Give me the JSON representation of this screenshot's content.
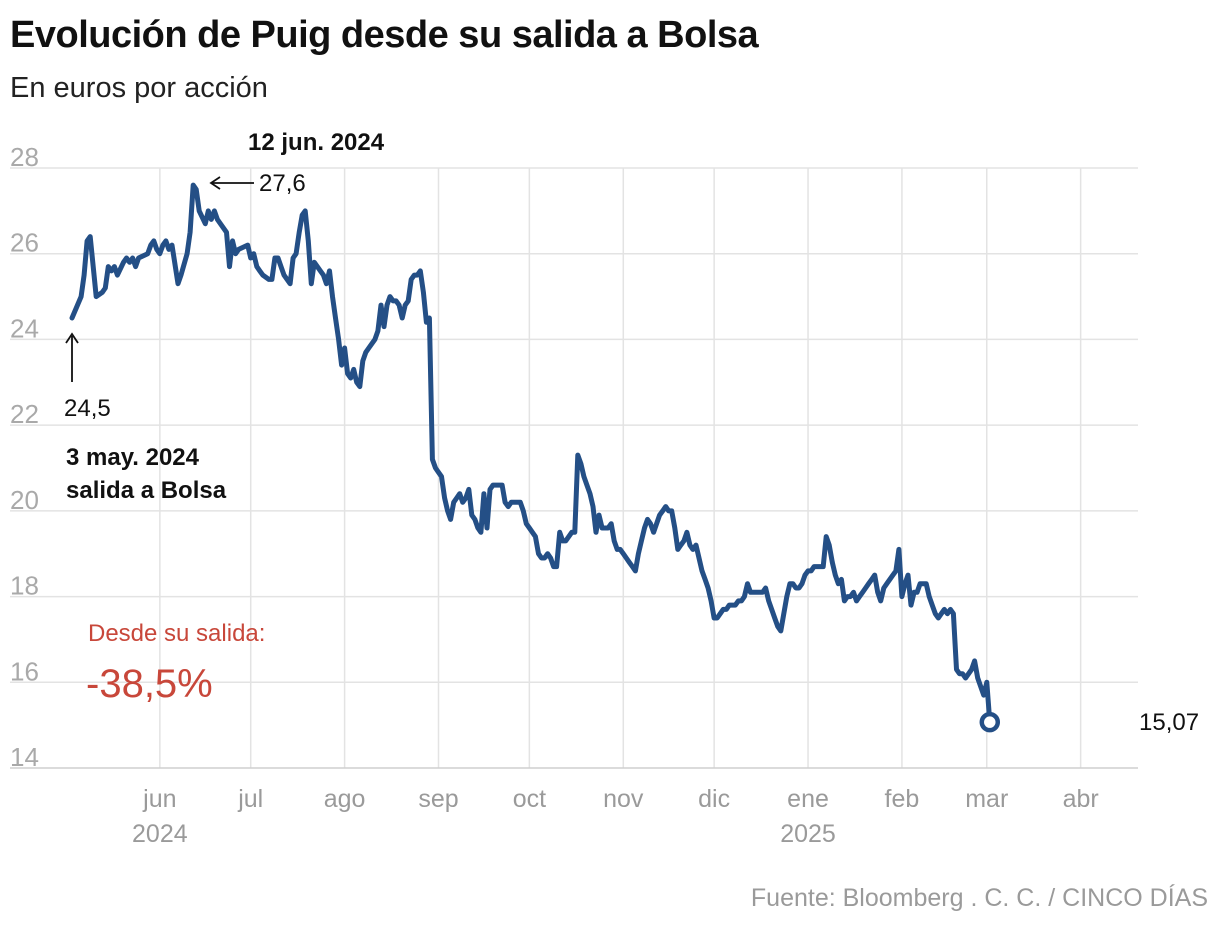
{
  "chart_data": {
    "type": "line",
    "title": "Evolución de Puig desde su salida a Bolsa",
    "subtitle": "En euros por acción",
    "source": "Fuente: Bloomberg . C. C. / CINCO DÍAS",
    "ylim": [
      14,
      28
    ],
    "yticks": [
      14,
      16,
      18,
      20,
      22,
      24,
      26,
      28
    ],
    "x_range": [
      0,
      345
    ],
    "x_ticks": [
      {
        "label": "jun",
        "sublabel": "2024",
        "day": 29
      },
      {
        "label": "jul",
        "sublabel": "",
        "day": 59
      },
      {
        "label": "ago",
        "sublabel": "",
        "day": 90
      },
      {
        "label": "sep",
        "sublabel": "",
        "day": 121
      },
      {
        "label": "oct",
        "sublabel": "",
        "day": 151
      },
      {
        "label": "nov",
        "sublabel": "",
        "day": 182
      },
      {
        "label": "dic",
        "sublabel": "",
        "day": 212
      },
      {
        "label": "ene",
        "sublabel": "2025",
        "day": 243
      },
      {
        "label": "feb",
        "sublabel": "",
        "day": 274
      },
      {
        "label": "mar",
        "sublabel": "",
        "day": 302
      },
      {
        "label": "abr",
        "sublabel": "",
        "day": 333
      }
    ],
    "series": [
      {
        "name": "Puig",
        "color": "#244f86",
        "points": [
          [
            0,
            24.5
          ],
          [
            3,
            25.0
          ],
          [
            4,
            25.5
          ],
          [
            5,
            26.3
          ],
          [
            6,
            26.4
          ],
          [
            8,
            25.0
          ],
          [
            10,
            25.1
          ],
          [
            11,
            25.2
          ],
          [
            12,
            25.7
          ],
          [
            13,
            25.6
          ],
          [
            14,
            25.7
          ],
          [
            15,
            25.5
          ],
          [
            17,
            25.8
          ],
          [
            18,
            25.9
          ],
          [
            19,
            25.8
          ],
          [
            20,
            25.9
          ],
          [
            21,
            25.7
          ],
          [
            22,
            25.9
          ],
          [
            25,
            26.0
          ],
          [
            26,
            26.2
          ],
          [
            27,
            26.3
          ],
          [
            28,
            26.1
          ],
          [
            29,
            26.0
          ],
          [
            30,
            26.2
          ],
          [
            31,
            26.3
          ],
          [
            32,
            26.1
          ],
          [
            33,
            26.2
          ],
          [
            35,
            25.3
          ],
          [
            36,
            25.5
          ],
          [
            38,
            26.0
          ],
          [
            39,
            26.5
          ],
          [
            40,
            27.6
          ],
          [
            41,
            27.5
          ],
          [
            42,
            27.0
          ],
          [
            44,
            26.7
          ],
          [
            45,
            27.0
          ],
          [
            46,
            26.8
          ],
          [
            47,
            27.0
          ],
          [
            48,
            26.8
          ],
          [
            51,
            26.5
          ],
          [
            52,
            25.7
          ],
          [
            53,
            26.3
          ],
          [
            54,
            26.0
          ],
          [
            55,
            26.1
          ],
          [
            58,
            26.2
          ],
          [
            59,
            25.9
          ],
          [
            60,
            26.0
          ],
          [
            61,
            25.7
          ],
          [
            62,
            25.6
          ],
          [
            63,
            25.5
          ],
          [
            65,
            25.4
          ],
          [
            66,
            25.4
          ],
          [
            67,
            25.9
          ],
          [
            68,
            25.9
          ],
          [
            69,
            25.7
          ],
          [
            70,
            25.5
          ],
          [
            72,
            25.3
          ],
          [
            73,
            25.9
          ],
          [
            74,
            26.0
          ],
          [
            75,
            26.5
          ],
          [
            76,
            26.9
          ],
          [
            77,
            27.0
          ],
          [
            78,
            26.3
          ],
          [
            79,
            25.3
          ],
          [
            80,
            25.8
          ],
          [
            81,
            25.7
          ],
          [
            82,
            25.6
          ],
          [
            83,
            25.5
          ],
          [
            84,
            25.3
          ],
          [
            85,
            25.6
          ],
          [
            86,
            25.0
          ],
          [
            87,
            24.5
          ],
          [
            88,
            24.0
          ],
          [
            89,
            23.4
          ],
          [
            90,
            23.8
          ],
          [
            91,
            23.2
          ],
          [
            92,
            23.1
          ],
          [
            93,
            23.3
          ],
          [
            94,
            23.0
          ],
          [
            95,
            22.9
          ],
          [
            96,
            23.5
          ],
          [
            97,
            23.7
          ],
          [
            98,
            23.8
          ],
          [
            100,
            24.0
          ],
          [
            101,
            24.2
          ],
          [
            102,
            24.8
          ],
          [
            103,
            24.3
          ],
          [
            104,
            24.8
          ],
          [
            105,
            25.0
          ],
          [
            106,
            24.9
          ],
          [
            107,
            24.9
          ],
          [
            108,
            24.8
          ],
          [
            109,
            24.5
          ],
          [
            110,
            24.8
          ],
          [
            111,
            24.9
          ],
          [
            112,
            25.4
          ],
          [
            113,
            25.5
          ],
          [
            114,
            25.5
          ],
          [
            115,
            25.6
          ],
          [
            116,
            25.1
          ],
          [
            117,
            24.4
          ],
          [
            118,
            24.5
          ],
          [
            119,
            21.2
          ],
          [
            120,
            21.0
          ],
          [
            121,
            20.9
          ],
          [
            122,
            20.8
          ],
          [
            123,
            20.3
          ],
          [
            124,
            20.0
          ],
          [
            125,
            19.8
          ],
          [
            126,
            20.2
          ],
          [
            127,
            20.3
          ],
          [
            128,
            20.4
          ],
          [
            129,
            20.2
          ],
          [
            130,
            20.3
          ],
          [
            131,
            20.5
          ],
          [
            132,
            19.9
          ],
          [
            133,
            19.8
          ],
          [
            134,
            19.6
          ],
          [
            135,
            19.5
          ],
          [
            136,
            20.4
          ],
          [
            137,
            19.6
          ],
          [
            138,
            20.5
          ],
          [
            139,
            20.6
          ],
          [
            140,
            20.6
          ],
          [
            141,
            20.6
          ],
          [
            142,
            20.6
          ],
          [
            143,
            20.2
          ],
          [
            144,
            20.1
          ],
          [
            145,
            20.2
          ],
          [
            146,
            20.2
          ],
          [
            147,
            20.2
          ],
          [
            148,
            20.2
          ],
          [
            149,
            20.0
          ],
          [
            150,
            19.7
          ],
          [
            151,
            19.6
          ],
          [
            152,
            19.5
          ],
          [
            153,
            19.4
          ],
          [
            154,
            19.0
          ],
          [
            155,
            18.9
          ],
          [
            156,
            18.9
          ],
          [
            157,
            19.0
          ],
          [
            158,
            18.9
          ],
          [
            159,
            18.7
          ],
          [
            160,
            18.7
          ],
          [
            161,
            19.5
          ],
          [
            162,
            19.3
          ],
          [
            163,
            19.3
          ],
          [
            164,
            19.4
          ],
          [
            165,
            19.5
          ],
          [
            166,
            19.5
          ],
          [
            167,
            21.3
          ],
          [
            168,
            21.1
          ],
          [
            169,
            20.8
          ],
          [
            170,
            20.6
          ],
          [
            171,
            20.4
          ],
          [
            172,
            20.1
          ],
          [
            173,
            19.5
          ],
          [
            174,
            19.9
          ],
          [
            175,
            19.6
          ],
          [
            176,
            19.6
          ],
          [
            177,
            19.6
          ],
          [
            178,
            19.7
          ],
          [
            179,
            19.3
          ],
          [
            180,
            19.1
          ],
          [
            181,
            19.1
          ],
          [
            182,
            19.0
          ],
          [
            183,
            18.9
          ],
          [
            184,
            18.8
          ],
          [
            185,
            18.7
          ],
          [
            186,
            18.6
          ],
          [
            187,
            19.0
          ],
          [
            188,
            19.3
          ],
          [
            189,
            19.6
          ],
          [
            190,
            19.8
          ],
          [
            191,
            19.7
          ],
          [
            192,
            19.5
          ],
          [
            193,
            19.7
          ],
          [
            194,
            19.9
          ],
          [
            195,
            20.0
          ],
          [
            196,
            20.1
          ],
          [
            197,
            20.0
          ],
          [
            198,
            20.0
          ],
          [
            199,
            19.6
          ],
          [
            200,
            19.1
          ],
          [
            201,
            19.2
          ],
          [
            202,
            19.3
          ],
          [
            203,
            19.5
          ],
          [
            204,
            19.2
          ],
          [
            205,
            19.1
          ],
          [
            206,
            19.2
          ],
          [
            207,
            18.9
          ],
          [
            208,
            18.6
          ],
          [
            209,
            18.4
          ],
          [
            210,
            18.2
          ],
          [
            211,
            17.9
          ],
          [
            212,
            17.5
          ],
          [
            213,
            17.5
          ],
          [
            214,
            17.6
          ],
          [
            215,
            17.7
          ],
          [
            216,
            17.7
          ],
          [
            217,
            17.8
          ],
          [
            218,
            17.8
          ],
          [
            219,
            17.8
          ],
          [
            220,
            17.9
          ],
          [
            221,
            17.9
          ],
          [
            222,
            18.0
          ],
          [
            223,
            18.3
          ],
          [
            224,
            18.1
          ],
          [
            225,
            18.1
          ],
          [
            226,
            18.1
          ],
          [
            227,
            18.1
          ],
          [
            228,
            18.1
          ],
          [
            229,
            18.2
          ],
          [
            230,
            17.9
          ],
          [
            231,
            17.7
          ],
          [
            232,
            17.5
          ],
          [
            233,
            17.3
          ],
          [
            234,
            17.2
          ],
          [
            235,
            17.6
          ],
          [
            236,
            18.0
          ],
          [
            237,
            18.3
          ],
          [
            238,
            18.3
          ],
          [
            239,
            18.2
          ],
          [
            240,
            18.2
          ],
          [
            241,
            18.3
          ],
          [
            242,
            18.5
          ],
          [
            243,
            18.6
          ],
          [
            244,
            18.6
          ],
          [
            245,
            18.7
          ],
          [
            246,
            18.7
          ],
          [
            247,
            18.7
          ],
          [
            248,
            18.7
          ],
          [
            249,
            19.4
          ],
          [
            250,
            19.2
          ],
          [
            251,
            18.8
          ],
          [
            252,
            18.5
          ],
          [
            253,
            18.3
          ],
          [
            254,
            18.4
          ],
          [
            255,
            17.9
          ],
          [
            256,
            18.0
          ],
          [
            257,
            18.0
          ],
          [
            258,
            18.1
          ],
          [
            259,
            17.9
          ],
          [
            260,
            18.0
          ],
          [
            261,
            18.1
          ],
          [
            262,
            18.2
          ],
          [
            263,
            18.3
          ],
          [
            264,
            18.4
          ],
          [
            265,
            18.5
          ],
          [
            266,
            18.1
          ],
          [
            267,
            17.9
          ],
          [
            268,
            18.2
          ],
          [
            269,
            18.3
          ],
          [
            270,
            18.4
          ],
          [
            271,
            18.5
          ],
          [
            272,
            18.6
          ],
          [
            273,
            19.1
          ],
          [
            274,
            18.0
          ],
          [
            275,
            18.3
          ],
          [
            276,
            18.5
          ],
          [
            277,
            17.8
          ],
          [
            278,
            18.1
          ],
          [
            279,
            18.1
          ],
          [
            280,
            18.3
          ],
          [
            281,
            18.3
          ],
          [
            282,
            18.3
          ],
          [
            283,
            18.0
          ],
          [
            284,
            17.8
          ],
          [
            285,
            17.6
          ],
          [
            286,
            17.5
          ],
          [
            287,
            17.6
          ],
          [
            288,
            17.7
          ],
          [
            289,
            17.6
          ],
          [
            290,
            17.7
          ],
          [
            291,
            17.6
          ],
          [
            292,
            16.3
          ],
          [
            293,
            16.2
          ],
          [
            294,
            16.2
          ],
          [
            295,
            16.1
          ],
          [
            296,
            16.2
          ],
          [
            297,
            16.3
          ],
          [
            298,
            16.5
          ],
          [
            299,
            16.1
          ],
          [
            300,
            15.9
          ],
          [
            301,
            15.7
          ],
          [
            302,
            16.0
          ],
          [
            303,
            15.07
          ]
        ]
      }
    ],
    "annotations": [
      {
        "date": "3 may. 2024",
        "note": "salida a Bolsa",
        "value": "24,5"
      },
      {
        "date": "12 jun. 2024",
        "value": "27,6"
      },
      {
        "label": "Desde su salida:",
        "value": "-38,5%"
      },
      {
        "last_value": "15,07"
      }
    ]
  }
}
